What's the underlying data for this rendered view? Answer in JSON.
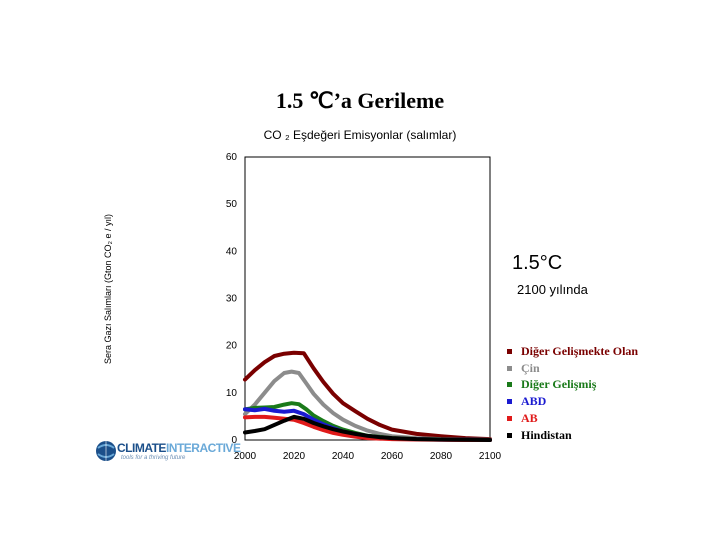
{
  "title": "1.5 ℃’a Gerileme",
  "subtitle": "CO ₂ Eşdeğeri Emisyonlar (salımlar)",
  "annotation_big": "1.5°C",
  "annotation_small": "2100 yılında",
  "logo": {
    "text_main": "CLIMATE",
    "text_accent": "INTERACTIVE",
    "tagline": "tools for a thriving future"
  },
  "chart_data": {
    "type": "line",
    "title": "CO ₂ Eşdeğeri Emisyonlar (salımlar)",
    "xlabel": "",
    "ylabel": "Sera Gazı Salımları (Gton CO₂ e / yıl)",
    "xlim": [
      2000,
      2100
    ],
    "ylim": [
      0,
      60
    ],
    "xticks": [
      2000,
      2020,
      2040,
      2060,
      2080,
      2100
    ],
    "yticks": [
      0,
      10,
      20,
      30,
      40,
      50,
      60
    ],
    "grid": false,
    "legend": "right",
    "series": [
      {
        "name": "Diğer Gelişmekte Olan",
        "color": "#7a0000",
        "x": [
          2000,
          2004,
          2008,
          2012,
          2016,
          2020,
          2024,
          2028,
          2032,
          2036,
          2040,
          2045,
          2050,
          2055,
          2060,
          2070,
          2080,
          2090,
          2100
        ],
        "y": [
          12.8,
          14.8,
          16.5,
          17.8,
          18.3,
          18.5,
          18.4,
          15.2,
          12.3,
          9.8,
          7.8,
          6.1,
          4.5,
          3.2,
          2.2,
          1.3,
          0.8,
          0.4,
          0.2
        ]
      },
      {
        "name": "Çin",
        "color": "#8c8c8c",
        "x": [
          2000,
          2004,
          2008,
          2012,
          2016,
          2019,
          2022,
          2025,
          2028,
          2032,
          2036,
          2040,
          2045,
          2050,
          2055,
          2060,
          2070,
          2080,
          2090,
          2100
        ],
        "y": [
          5.5,
          7.5,
          10.0,
          12.5,
          14.2,
          14.5,
          14.2,
          12.0,
          9.8,
          7.5,
          5.7,
          4.3,
          3.0,
          2.0,
          1.3,
          0.8,
          0.4,
          0.2,
          0.1,
          0.05
        ]
      },
      {
        "name": "Diğer Gelişmiş",
        "color": "#1a7a1a",
        "x": [
          2000,
          2004,
          2008,
          2012,
          2016,
          2019,
          2022,
          2025,
          2028,
          2032,
          2036,
          2040,
          2045,
          2050,
          2060,
          2070,
          2080,
          2090,
          2100
        ],
        "y": [
          6.5,
          6.8,
          6.9,
          7.0,
          7.5,
          7.8,
          7.6,
          6.5,
          5.2,
          4.0,
          3.0,
          2.2,
          1.5,
          0.9,
          0.4,
          0.2,
          0.1,
          0.05,
          0.0
        ]
      },
      {
        "name": "ABD",
        "color": "#1a1ad0",
        "x": [
          2000,
          2004,
          2008,
          2012,
          2016,
          2020,
          2024,
          2028,
          2032,
          2036,
          2040,
          2045,
          2050,
          2060,
          2070,
          2080,
          2090,
          2100
        ],
        "y": [
          6.5,
          6.3,
          6.6,
          6.2,
          6.0,
          6.2,
          5.5,
          4.3,
          3.3,
          2.5,
          1.8,
          1.2,
          0.8,
          0.3,
          0.15,
          0.08,
          0.05,
          0.0
        ]
      },
      {
        "name": "AB",
        "color": "#e01a1a",
        "x": [
          2000,
          2004,
          2008,
          2012,
          2016,
          2020,
          2024,
          2028,
          2032,
          2036,
          2040,
          2045,
          2050,
          2060,
          2070,
          2080,
          2090,
          2100
        ],
        "y": [
          4.8,
          4.9,
          4.9,
          4.7,
          4.5,
          4.3,
          3.6,
          2.8,
          2.1,
          1.5,
          1.1,
          0.7,
          0.4,
          0.2,
          0.1,
          0.05,
          0.0,
          0.0
        ]
      },
      {
        "name": "Hindistan",
        "color": "#000000",
        "x": [
          2000,
          2004,
          2008,
          2012,
          2016,
          2020,
          2024,
          2028,
          2032,
          2036,
          2040,
          2045,
          2050,
          2055,
          2060,
          2070,
          2080,
          2090,
          2100
        ],
        "y": [
          1.6,
          1.9,
          2.3,
          3.2,
          4.1,
          4.9,
          4.5,
          3.6,
          2.9,
          2.3,
          1.8,
          1.3,
          0.9,
          0.6,
          0.4,
          0.2,
          0.1,
          0.05,
          0.0
        ]
      }
    ]
  }
}
